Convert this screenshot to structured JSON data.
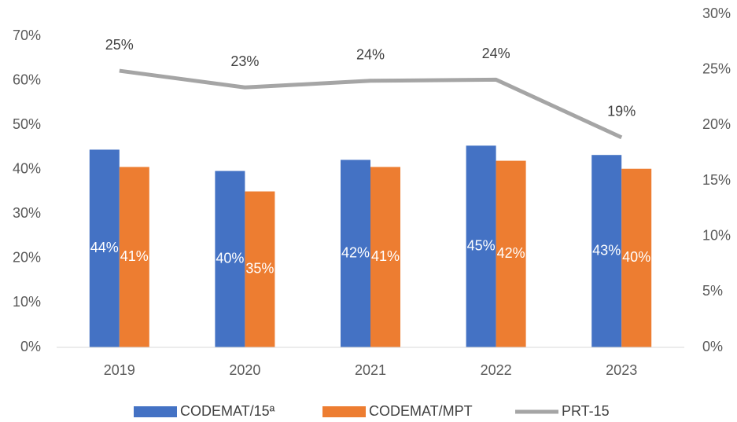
{
  "chart_data": {
    "type": "bar+line",
    "categories": [
      "2019",
      "2020",
      "2021",
      "2022",
      "2023"
    ],
    "series": [
      {
        "name": "CODEMAT/15ª",
        "type": "bar",
        "color": "#4472c4",
        "values": [
          44.5,
          39.7,
          42.2,
          45.4,
          43.3
        ],
        "value_labels": [
          "44%",
          "40%",
          "42%",
          "45%",
          "43%"
        ]
      },
      {
        "name": "CODEMAT/MPT",
        "type": "bar",
        "color": "#ed7d31",
        "values": [
          40.6,
          35.1,
          40.6,
          42.0,
          40.2
        ],
        "value_labels": [
          "41%",
          "35%",
          "41%",
          "42%",
          "40%"
        ]
      },
      {
        "name": "PRT-15",
        "type": "line",
        "axis": "y2",
        "color": "#a5a5a5",
        "values": [
          24.9,
          23.4,
          24.0,
          24.1,
          18.9
        ],
        "value_labels": [
          "25%",
          "23%",
          "24%",
          "24%",
          "19%"
        ]
      }
    ],
    "ylim": [
      0,
      75
    ],
    "yticks": [
      {
        "value": 0,
        "label": "0%"
      },
      {
        "value": 10,
        "label": "10%"
      },
      {
        "value": 20,
        "label": "20%"
      },
      {
        "value": 30,
        "label": "30%"
      },
      {
        "value": 40,
        "label": "40%"
      },
      {
        "value": 50,
        "label": "50%"
      },
      {
        "value": 60,
        "label": "60%"
      },
      {
        "value": 70,
        "label": "70%"
      }
    ],
    "y2lim": [
      0,
      30
    ],
    "y2ticks": [
      {
        "value": 0,
        "label": "0%"
      },
      {
        "value": 5,
        "label": "5%"
      },
      {
        "value": 10,
        "label": "10%"
      },
      {
        "value": 15,
        "label": "15%"
      },
      {
        "value": 20,
        "label": "20%"
      },
      {
        "value": 25,
        "label": "25%"
      },
      {
        "value": 30,
        "label": "30%"
      }
    ],
    "legend": "bottom"
  }
}
